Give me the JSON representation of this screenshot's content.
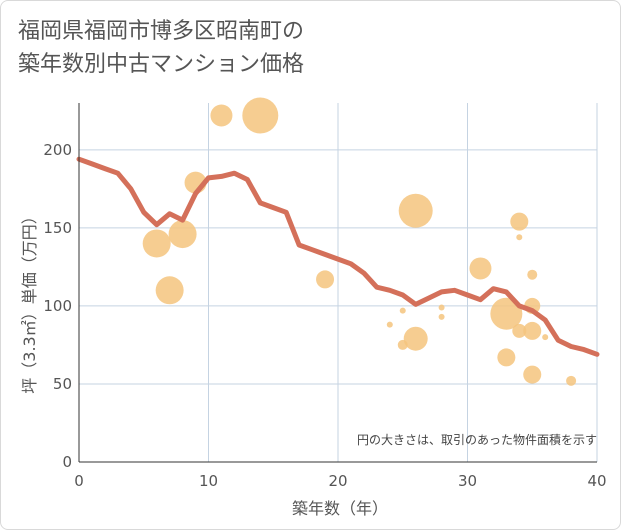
{
  "title": {
    "line1": "福岡県福岡市博多区昭南町の",
    "line2": "築年数別中古マンション価格"
  },
  "note": "円の大きさは、取引のあった物件面積を示す",
  "colors": {
    "line": "#d4705a",
    "bubble": "#f5c47e",
    "grid": "#c5d3e2",
    "axis": "#333333"
  },
  "chart_data": {
    "type": "scatter",
    "xlabel": "築年数（年）",
    "ylabel": "坪（3.3㎡）単価（万円）",
    "xlim": [
      0,
      40
    ],
    "ylim": [
      0,
      230
    ],
    "xticks": [
      0,
      10,
      20,
      30,
      40
    ],
    "yticks": [
      0,
      50,
      100,
      150,
      200
    ],
    "grid": true,
    "line": {
      "x": [
        0,
        1,
        2,
        3,
        4,
        5,
        6,
        7,
        8,
        9,
        10,
        11,
        12,
        13,
        14,
        15,
        16,
        17,
        18,
        19,
        20,
        21,
        22,
        23,
        24,
        25,
        26,
        27,
        28,
        29,
        30,
        31,
        32,
        33,
        34,
        35,
        36,
        37,
        38,
        39,
        40
      ],
      "y": [
        194,
        191,
        188,
        185,
        175,
        160,
        152,
        159,
        155,
        172,
        182,
        183,
        185,
        181,
        166,
        163,
        160,
        139,
        136,
        133,
        130,
        127,
        121,
        112,
        110,
        107,
        101,
        105,
        109,
        110,
        107,
        104,
        111,
        109,
        100,
        97,
        91,
        78,
        74,
        72,
        69
      ]
    },
    "bubbles": [
      {
        "x": 6,
        "y": 140,
        "size": 14
      },
      {
        "x": 7,
        "y": 110,
        "size": 14
      },
      {
        "x": 8,
        "y": 146,
        "size": 14
      },
      {
        "x": 9,
        "y": 179,
        "size": 11
      },
      {
        "x": 11,
        "y": 222,
        "size": 11
      },
      {
        "x": 14,
        "y": 222,
        "size": 18
      },
      {
        "x": 19,
        "y": 117,
        "size": 9
      },
      {
        "x": 24,
        "y": 88,
        "size": 3
      },
      {
        "x": 25,
        "y": 97,
        "size": 3
      },
      {
        "x": 25,
        "y": 75,
        "size": 5
      },
      {
        "x": 26,
        "y": 161,
        "size": 17
      },
      {
        "x": 26,
        "y": 79,
        "size": 12
      },
      {
        "x": 28,
        "y": 99,
        "size": 3
      },
      {
        "x": 28,
        "y": 93,
        "size": 3
      },
      {
        "x": 31,
        "y": 124,
        "size": 11
      },
      {
        "x": 33,
        "y": 95,
        "size": 16
      },
      {
        "x": 33,
        "y": 67,
        "size": 9
      },
      {
        "x": 34,
        "y": 154,
        "size": 9
      },
      {
        "x": 34,
        "y": 144,
        "size": 3
      },
      {
        "x": 34,
        "y": 84,
        "size": 7
      },
      {
        "x": 35,
        "y": 120,
        "size": 5
      },
      {
        "x": 35,
        "y": 100,
        "size": 8
      },
      {
        "x": 35,
        "y": 84,
        "size": 9
      },
      {
        "x": 35,
        "y": 56,
        "size": 9
      },
      {
        "x": 36,
        "y": 80,
        "size": 3
      },
      {
        "x": 38,
        "y": 52,
        "size": 5
      }
    ]
  }
}
